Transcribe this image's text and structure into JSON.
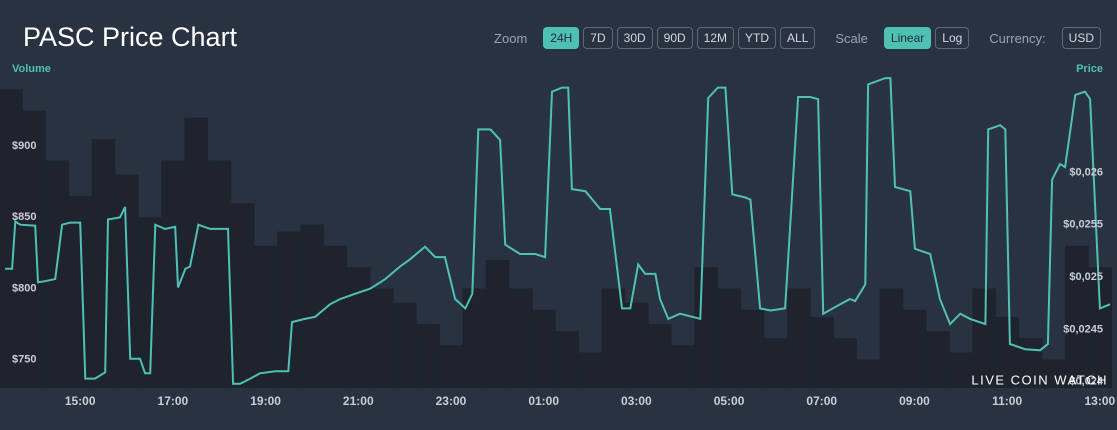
{
  "chart_data": {
    "type": "line",
    "title": "PASC Price Chart",
    "y_label": "Volume",
    "y2_label": "Price",
    "xlim": [
      13.27,
      37.37
    ],
    "xticks": [
      {
        "value": 15,
        "label": "15:00"
      },
      {
        "value": 17,
        "label": "17:00"
      },
      {
        "value": 19,
        "label": "19:00"
      },
      {
        "value": 21,
        "label": "21:00"
      },
      {
        "value": 23,
        "label": "23:00"
      },
      {
        "value": 25,
        "label": "01:00"
      },
      {
        "value": 27,
        "label": "03:00"
      },
      {
        "value": 29,
        "label": "05:00"
      },
      {
        "value": 31,
        "label": "07:00"
      },
      {
        "value": 33,
        "label": "09:00"
      },
      {
        "value": 35,
        "label": "11:00"
      },
      {
        "value": 37,
        "label": "13:00"
      }
    ],
    "ylim": [
      730,
      950
    ],
    "yticks": [
      {
        "value": 750,
        "label": "$750"
      },
      {
        "value": 800,
        "label": "$800"
      },
      {
        "value": 850,
        "label": "$850"
      },
      {
        "value": 900,
        "label": "$900"
      }
    ],
    "y2lim": [
      0.02394,
      0.02693
    ],
    "y2ticks": [
      {
        "value": 0.024,
        "label": "$0,024"
      },
      {
        "value": 0.0245,
        "label": "$0,0245"
      },
      {
        "value": 0.025,
        "label": "$0,025"
      },
      {
        "value": 0.0255,
        "label": "$0,0255"
      },
      {
        "value": 0.026,
        "label": "$0,026"
      }
    ],
    "grid": false,
    "series": [
      {
        "name": "Volume",
        "type": "bar",
        "color": "#1c212b",
        "x": [
          13.5,
          14,
          14.5,
          15,
          15.5,
          16,
          16.5,
          17,
          17.5,
          18,
          18.5,
          19,
          19.5,
          20,
          20.5,
          21,
          21.5,
          22,
          22.5,
          23,
          23.5,
          24,
          24.5,
          25,
          25.5,
          26,
          26.5,
          27,
          27.5,
          28,
          28.5,
          29,
          29.5,
          30,
          30.5,
          31,
          31.5,
          32,
          32.5,
          33,
          33.5,
          34,
          34.5,
          35,
          35.5,
          36,
          36.5,
          37
        ],
        "values": [
          940,
          925,
          890,
          865,
          905,
          880,
          850,
          890,
          920,
          890,
          860,
          830,
          840,
          845,
          830,
          815,
          800,
          790,
          775,
          760,
          800,
          820,
          800,
          785,
          770,
          755,
          800,
          790,
          775,
          760,
          815,
          800,
          785,
          765,
          800,
          780,
          765,
          750,
          800,
          785,
          770,
          755,
          800,
          780,
          765,
          750,
          830,
          815
        ]
      },
      {
        "name": "Price",
        "type": "line",
        "axis": "y2",
        "color": "#4fc1b4",
        "x": [
          13.38,
          13.53,
          13.6,
          13.71,
          14.03,
          14.09,
          14.24,
          14.46,
          14.61,
          14.78,
          15.0,
          15.11,
          15.32,
          15.54,
          15.6,
          15.86,
          15.97,
          16.08,
          16.29,
          16.4,
          16.51,
          16.62,
          16.83,
          17.05,
          17.11,
          17.27,
          17.37,
          17.55,
          17.8,
          18.19,
          18.3,
          18.45,
          18.67,
          18.88,
          19.21,
          19.49,
          19.57,
          19.85,
          20.07,
          20.39,
          20.61,
          20.93,
          21.26,
          21.58,
          21.9,
          22.12,
          22.44,
          22.66,
          22.87,
          23.09,
          23.31,
          23.46,
          23.59,
          23.85,
          24.06,
          24.17,
          24.49,
          24.82,
          25.03,
          25.18,
          25.4,
          25.53,
          25.61,
          25.9,
          26.22,
          26.43,
          26.69,
          26.87,
          27.04,
          27.19,
          27.41,
          27.51,
          27.69,
          27.94,
          28.38,
          28.55,
          28.76,
          28.92,
          29.07,
          29.35,
          29.46,
          29.67,
          29.89,
          30.21,
          30.49,
          30.75,
          30.92,
          31.03,
          31.4,
          31.61,
          31.72,
          31.94,
          32.0,
          32.37,
          32.48,
          32.58,
          32.91,
          33.01,
          33.34,
          33.55,
          33.77,
          33.99,
          34.2,
          34.53,
          34.59,
          34.85,
          34.96,
          35.06,
          35.39,
          35.71,
          35.88,
          35.97,
          36.14,
          36.25,
          36.47,
          36.68,
          36.79,
          37.0,
          37.22
        ],
        "values": [
          0.02508,
          0.02508,
          0.02553,
          0.0255,
          0.02549,
          0.02495,
          0.02496,
          0.02498,
          0.0255,
          0.02552,
          0.02552,
          0.02403,
          0.02403,
          0.02409,
          0.02555,
          0.02557,
          0.02567,
          0.02422,
          0.02422,
          0.02408,
          0.02408,
          0.0255,
          0.02546,
          0.02548,
          0.0249,
          0.02508,
          0.0251,
          0.0255,
          0.02546,
          0.02546,
          0.02398,
          0.02398,
          0.02403,
          0.02408,
          0.0241,
          0.0241,
          0.02457,
          0.0246,
          0.02462,
          0.02474,
          0.02479,
          0.02484,
          0.02489,
          0.02498,
          0.0251,
          0.02517,
          0.02529,
          0.02519,
          0.02519,
          0.02479,
          0.0247,
          0.02484,
          0.02641,
          0.02641,
          0.02631,
          0.02531,
          0.02522,
          0.02522,
          0.02519,
          0.02677,
          0.02681,
          0.02681,
          0.02584,
          0.02582,
          0.02565,
          0.02565,
          0.0247,
          0.0247,
          0.02512,
          0.02503,
          0.02503,
          0.02479,
          0.0246,
          0.02465,
          0.0246,
          0.02671,
          0.02681,
          0.02681,
          0.02579,
          0.02576,
          0.02574,
          0.0247,
          0.02468,
          0.0247,
          0.02672,
          0.02672,
          0.0267,
          0.02465,
          0.02474,
          0.02479,
          0.02477,
          0.02493,
          0.02684,
          0.0269,
          0.0269,
          0.02586,
          0.02582,
          0.02527,
          0.02522,
          0.02479,
          0.02455,
          0.02465,
          0.0246,
          0.02455,
          0.02641,
          0.02645,
          0.02641,
          0.02436,
          0.02431,
          0.0243,
          0.02436,
          0.02593,
          0.02608,
          0.02605,
          0.02674,
          0.02677,
          0.0267,
          0.0247,
          0.02474
        ]
      }
    ]
  },
  "controls": {
    "zoom_label": "Zoom",
    "zoom": [
      "24H",
      "7D",
      "30D",
      "90D",
      "12M",
      "YTD",
      "ALL"
    ],
    "scale_label": "Scale",
    "scale": [
      "Linear",
      "Log"
    ],
    "currency_label": "Currency:",
    "currency": "USD"
  },
  "watermark": "LIVE COIN WATCH"
}
